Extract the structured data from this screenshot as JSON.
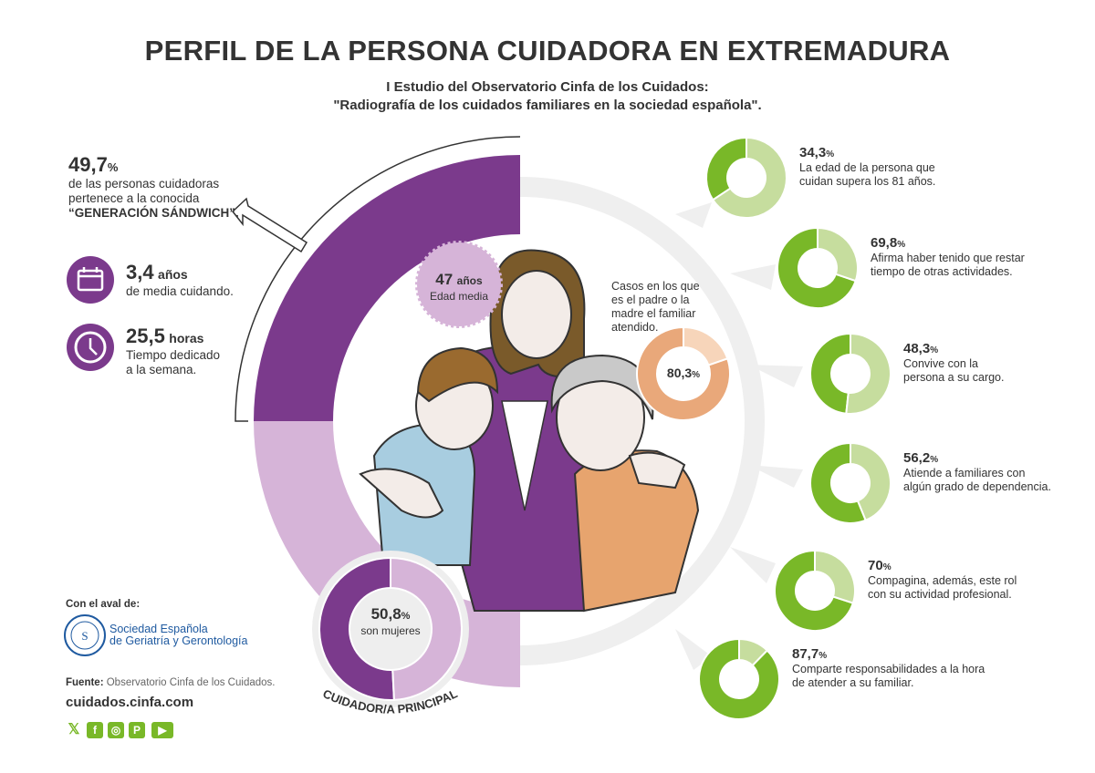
{
  "header": {
    "title": "PERFIL DE LA PERSONA CUIDADORA EN EXTREMADURA",
    "subtitle_line1": "I Estudio del Observatorio Cinfa de los Cuidados:",
    "subtitle_line2": "\"Radiografía de los cuidados familiares en la sociedad española\"."
  },
  "colors": {
    "purple": "#7b3a8c",
    "light_purple": "#d6b4d8",
    "dark_green": "#79b828",
    "light_green": "#c6dd9e",
    "dark_orange": "#e9a87a",
    "light_orange": "#f7d5ba",
    "text": "#333333"
  },
  "left_stats": {
    "sandwich": {
      "value": "49,7",
      "unit": "%",
      "line1": "de las personas cuidadoras",
      "line2": "pertenece a la conocida",
      "line3": "“GENERACIÓN SÁNDWICH”."
    },
    "years": {
      "icon": "calendar-icon",
      "value": "3,4",
      "unit": "años",
      "line1": "de media cuidando."
    },
    "hours": {
      "icon": "clock-icon",
      "value": "25,5",
      "unit": "horas",
      "line1": "Tiempo dedicado",
      "line2": "a la semana."
    }
  },
  "center": {
    "age_badge": {
      "value": "47",
      "unit": "años",
      "label": "Edad media"
    },
    "parent_case": {
      "line1": "Casos en los que",
      "line2": "es el padre o la",
      "line3": "madre el familiar",
      "line4": "atendido.",
      "value": "80,3",
      "unit": "%",
      "percent": 80.3
    },
    "women": {
      "value": "50,8",
      "unit": "%",
      "label": "son mujeres",
      "percent": 50.8
    },
    "arc_label": "CUIDADOR/A PRINCIPAL",
    "sandwich_arc_percent": 49.7
  },
  "right_stats": [
    {
      "value": "34,3",
      "unit": "%",
      "percent": 34.3,
      "line1": "La edad de la persona que",
      "line2": "cuidan supera los 81 años."
    },
    {
      "value": "69,8",
      "unit": "%",
      "percent": 69.8,
      "line1": "Afirma haber tenido que restar",
      "line2": "tiempo de otras actividades."
    },
    {
      "value": "48,3",
      "unit": "%",
      "percent": 48.3,
      "line1": "Convive con la",
      "line2": "persona a su cargo."
    },
    {
      "value": "56,2",
      "unit": "%",
      "percent": 56.2,
      "line1": "Atiende a familiares con",
      "line2": "algún grado de dependencia."
    },
    {
      "value": "70",
      "unit": "%",
      "percent": 70,
      "line1": "Compagina, además, este rol",
      "line2": "con su actividad profesional."
    },
    {
      "value": "87,7",
      "unit": "%",
      "percent": 87.7,
      "line1": "Comparte responsabilidades a la hora",
      "line2": "de atender a su familiar."
    }
  ],
  "footer": {
    "endorsed_label": "Con el aval de:",
    "society_line1": "Sociedad Española",
    "society_line2": "de Geriatría y Gerontología",
    "source_label": "Fuente:",
    "source_text": "Observatorio Cinfa de los Cuidados.",
    "website": "cuidados.cinfa.com",
    "social": [
      {
        "icon": "x-icon",
        "glyph": "𝕏"
      },
      {
        "icon": "facebook-icon",
        "glyph": "f"
      },
      {
        "icon": "instagram-icon",
        "glyph": "◎"
      },
      {
        "icon": "pinterest-icon",
        "glyph": "P"
      },
      {
        "icon": "youtube-icon",
        "glyph": "▶"
      }
    ]
  }
}
